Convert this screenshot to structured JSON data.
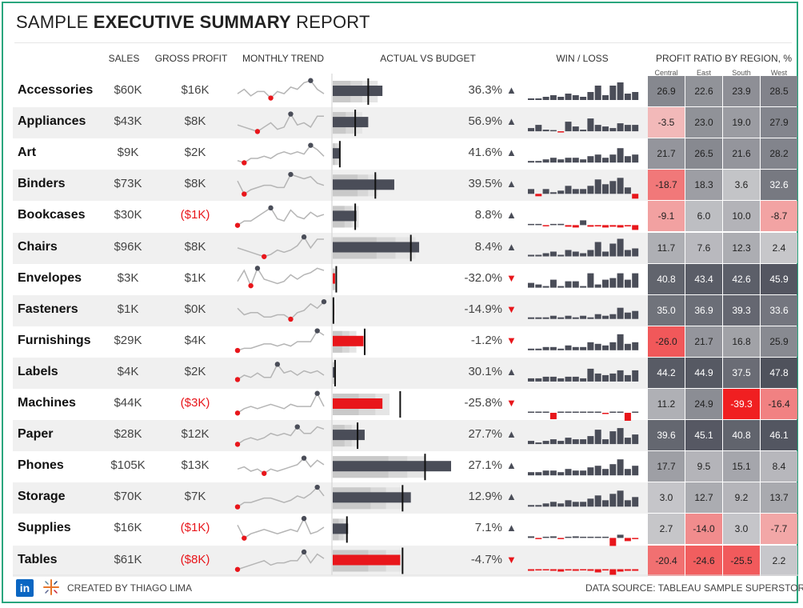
{
  "title": {
    "prefix": "SAMPLE ",
    "bold": "EXECUTIVE SUMMARY",
    "suffix": " REPORT"
  },
  "headers": {
    "sales": "SALES",
    "gross_profit": "GROSS PROFIT",
    "monthly_trend": "MONTHLY TREND",
    "actual_vs_budget": "ACTUAL VS BUDGET",
    "win_loss": "WIN / LOSS",
    "profit_ratio": "PROFIT RATIO BY REGION, %"
  },
  "regions": [
    "Central",
    "East",
    "South",
    "West"
  ],
  "footer": {
    "created_by": "CREATED BY THIAGO LIMA",
    "source": "DATA SOURCE: TABLEAU SAMPLE SUPERSTORE",
    "linkedin": "in"
  },
  "colors": {
    "accent_border": "#2aa67e",
    "dark_bar": "#4a4d58",
    "negative": "#e8161b",
    "line": "#b5b5b5"
  },
  "chart_data": {
    "type": "table",
    "title": "Sample Executive Summary Report",
    "rows": [
      {
        "category": "Accessories",
        "sales": "$60K",
        "gross_profit": "$16K",
        "gp_negative": false,
        "trend": [
          4,
          6,
          3,
          5,
          5,
          2,
          5,
          4,
          7,
          6,
          9,
          10,
          6,
          4
        ],
        "trend_min": 0,
        "trend_max": 11,
        "avb": {
          "actual": 0.42,
          "budget": 0.3,
          "ranges": [
            0.15,
            0.25,
            0.38
          ]
        },
        "pct": "36.3%",
        "pct_dir": "up",
        "winloss": [
          1,
          1,
          2,
          3,
          2,
          4,
          3,
          2,
          5,
          9,
          3,
          9,
          11,
          4,
          5
        ],
        "region": [
          26.9,
          22.6,
          23.9,
          28.5
        ]
      },
      {
        "category": "Appliances",
        "sales": "$43K",
        "gross_profit": "$8K",
        "gp_negative": false,
        "trend": [
          4,
          3,
          2,
          1,
          3,
          5,
          2,
          3,
          9,
          4,
          5,
          3,
          8,
          8
        ],
        "trend_min": 0,
        "trend_max": 11,
        "avb": {
          "actual": 0.3,
          "budget": 0.19,
          "ranges": [
            0.11,
            0.18,
            0.25
          ]
        },
        "pct": "56.9%",
        "pct_dir": "up",
        "winloss": [
          2,
          4,
          1,
          0.5,
          -0.3,
          6,
          3,
          1,
          8,
          4,
          3,
          2,
          5,
          4,
          4
        ],
        "region": [
          -3.5,
          23.0,
          19.0,
          27.9
        ]
      },
      {
        "category": "Art",
        "sales": "$9K",
        "gross_profit": "$2K",
        "gp_negative": false,
        "trend": [
          2,
          1,
          3,
          3,
          4,
          3,
          5,
          6,
          5,
          6,
          5,
          9,
          7,
          4
        ],
        "trend_min": 0,
        "trend_max": 11,
        "avb": {
          "actual": 0.06,
          "budget": 0.06,
          "ranges": [
            0.02,
            0.04,
            0.06
          ]
        },
        "pct": "41.6%",
        "pct_dir": "up",
        "winloss": [
          1,
          1,
          2,
          3,
          2,
          3,
          3,
          2,
          4,
          5,
          3,
          5,
          9,
          4,
          5
        ],
        "region": [
          21.7,
          26.5,
          21.6,
          28.2
        ]
      },
      {
        "category": "Binders",
        "sales": "$73K",
        "gross_profit": "$8K",
        "gp_negative": false,
        "trend": [
          7,
          1,
          3,
          4,
          5,
          5,
          4,
          4,
          10,
          9,
          8,
          9,
          6,
          5
        ],
        "trend_min": 0,
        "trend_max": 11,
        "avb": {
          "actual": 0.52,
          "budget": 0.36,
          "ranges": [
            0.21,
            0.3,
            0.38
          ]
        },
        "pct": "39.5%",
        "pct_dir": "up",
        "winloss": [
          3,
          -1.5,
          3,
          1,
          2,
          5,
          3,
          3,
          5,
          9,
          6,
          8,
          10,
          4,
          -3
        ],
        "region": [
          -18.7,
          18.3,
          3.6,
          32.6
        ]
      },
      {
        "category": "Bookcases",
        "sales": "$30K",
        "gross_profit": "($1K)",
        "gp_negative": true,
        "trend": [
          1,
          3,
          3,
          5,
          7,
          9,
          4,
          3,
          8,
          5,
          4,
          7,
          5,
          6
        ],
        "trend_min": 0,
        "trend_max": 11,
        "avb": {
          "actual": 0.2,
          "budget": 0.19,
          "ranges": [
            0.1,
            0.16,
            0.22
          ]
        },
        "pct": "8.8%",
        "pct_dir": "up",
        "winloss": [
          0.5,
          0.5,
          -0.3,
          0.5,
          0.8,
          -1,
          -1.5,
          3,
          -1,
          -0.8,
          -1.5,
          -1,
          -1.5,
          -0.8,
          -3
        ],
        "region": [
          -9.1,
          6.0,
          10.0,
          -8.7
        ]
      },
      {
        "category": "Chairs",
        "sales": "$96K",
        "gross_profit": "$8K",
        "gp_negative": false,
        "trend": [
          5,
          4,
          3,
          2,
          1,
          2,
          4,
          3,
          4,
          6,
          10,
          5,
          9,
          9
        ],
        "trend_min": 0,
        "trend_max": 11,
        "avb": {
          "actual": 0.73,
          "budget": 0.66,
          "ranges": [
            0.37,
            0.53,
            0.7
          ]
        },
        "pct": "8.4%",
        "pct_dir": "up",
        "winloss": [
          1,
          1,
          2,
          3,
          1,
          4,
          3,
          2,
          4,
          9,
          3,
          8,
          11,
          4,
          5
        ],
        "region": [
          11.7,
          7.6,
          12.3,
          2.4
        ]
      },
      {
        "category": "Envelopes",
        "sales": "$3K",
        "gross_profit": "$1K",
        "gp_negative": false,
        "trend": [
          4,
          9,
          2,
          10,
          5,
          4,
          3,
          4,
          7,
          5,
          7,
          8,
          10,
          9
        ],
        "trend_min": 0,
        "trend_max": 11,
        "avb": {
          "actual": 0.02,
          "budget": 0.03,
          "ranges": [
            0.01,
            0.02,
            0.03
          ]
        },
        "pct": "-32.0%",
        "pct_dir": "down",
        "winloss": [
          3,
          2,
          1,
          5,
          1,
          4,
          4,
          1,
          9,
          2,
          5,
          6,
          9,
          5,
          9
        ],
        "region": [
          40.8,
          43.4,
          42.6,
          45.9
        ]
      },
      {
        "category": "Fasteners",
        "sales": "$1K",
        "gross_profit": "$0K",
        "gp_negative": false,
        "trend": [
          6,
          3,
          4,
          4,
          2,
          2,
          3,
          3,
          1,
          4,
          5,
          8,
          6,
          9
        ],
        "trend_min": 0,
        "trend_max": 11,
        "avb": {
          "actual": 0.005,
          "budget": 0.006,
          "ranges": [
            0.002,
            0.004,
            0.006
          ]
        },
        "pct": "-14.9%",
        "pct_dir": "down",
        "winloss": [
          1,
          1,
          1,
          2,
          1,
          2,
          1,
          2,
          1,
          3,
          2,
          3,
          7,
          4,
          5
        ],
        "region": [
          35.0,
          36.9,
          39.3,
          33.6
        ]
      },
      {
        "category": "Furnishings",
        "sales": "$29K",
        "gross_profit": "$4K",
        "gp_negative": false,
        "trend": [
          1,
          2,
          2,
          3,
          4,
          4,
          3,
          4,
          3,
          5,
          5,
          5,
          10,
          8
        ],
        "trend_min": 0,
        "trend_max": 11,
        "avb": {
          "actual": 0.26,
          "budget": 0.27,
          "ranges": [
            0.08,
            0.14,
            0.2
          ]
        },
        "pct": "-1.2%",
        "pct_dir": "down",
        "winloss": [
          1,
          1,
          2,
          2,
          1,
          3,
          2,
          2,
          5,
          4,
          3,
          5,
          10,
          4,
          5
        ],
        "region": [
          -26.0,
          21.7,
          16.8,
          25.9
        ]
      },
      {
        "category": "Labels",
        "sales": "$4K",
        "gross_profit": "$2K",
        "gp_negative": false,
        "trend": [
          2,
          4,
          3,
          5,
          3,
          3,
          9,
          5,
          6,
          4,
          6,
          5,
          6,
          4
        ],
        "trend_min": 0,
        "trend_max": 11,
        "avb": {
          "actual": 0.02,
          "budget": 0.02,
          "ranges": [
            0.01,
            0.02,
            0.03
          ]
        },
        "pct": "30.1%",
        "pct_dir": "up",
        "winloss": [
          2,
          2,
          3,
          3,
          2,
          3,
          3,
          2,
          8,
          5,
          4,
          5,
          7,
          4,
          7
        ],
        "region": [
          44.2,
          44.9,
          37.5,
          47.8
        ]
      },
      {
        "category": "Machines",
        "sales": "$44K",
        "gross_profit": "($3K)",
        "gp_negative": true,
        "trend": [
          1,
          3,
          4,
          3,
          4,
          5,
          4,
          3,
          5,
          4,
          4,
          4,
          10,
          4
        ],
        "trend_min": 0,
        "trend_max": 11,
        "avb": {
          "actual": 0.42,
          "budget": 0.57,
          "ranges": [
            0.22,
            0.36,
            0.48
          ]
        },
        "pct": "-25.8%",
        "pct_dir": "down",
        "winloss": [
          0.3,
          0.3,
          0.3,
          -4,
          0.3,
          0.3,
          0.3,
          0.3,
          0.3,
          0.3,
          -0.3,
          0.3,
          0.3,
          -5,
          0.3
        ],
        "region": [
          11.2,
          24.9,
          -39.3,
          -16.4
        ]
      },
      {
        "category": "Paper",
        "sales": "$28K",
        "gross_profit": "$12K",
        "gp_negative": false,
        "trend": [
          1,
          3,
          4,
          3,
          4,
          6,
          5,
          6,
          5,
          9,
          6,
          6,
          9,
          8
        ],
        "trend_min": 0,
        "trend_max": 11,
        "avb": {
          "actual": 0.27,
          "budget": 0.21,
          "ranges": [
            0.1,
            0.16,
            0.22
          ]
        },
        "pct": "27.7%",
        "pct_dir": "up",
        "winloss": [
          2,
          1,
          2,
          3,
          2,
          4,
          3,
          3,
          5,
          9,
          3,
          8,
          10,
          4,
          6
        ],
        "region": [
          39.6,
          45.1,
          40.8,
          46.1
        ]
      },
      {
        "category": "Phones",
        "sales": "$105K",
        "gross_profit": "$13K",
        "gp_negative": false,
        "trend": [
          4,
          5,
          3,
          4,
          2,
          4,
          3,
          4,
          5,
          6,
          9,
          5,
          8,
          6
        ],
        "trend_min": 0,
        "trend_max": 11,
        "avb": {
          "actual": 1.0,
          "budget": 0.78,
          "ranges": [
            0.47,
            0.63,
            0.78
          ]
        },
        "pct": "27.1%",
        "pct_dir": "up",
        "winloss": [
          2,
          2,
          3,
          3,
          2,
          4,
          3,
          3,
          5,
          6,
          4,
          7,
          10,
          4,
          6
        ],
        "region": [
          17.7,
          9.5,
          15.1,
          8.4
        ]
      },
      {
        "category": "Storage",
        "sales": "$70K",
        "gross_profit": "$7K",
        "gp_negative": false,
        "trend": [
          1,
          3,
          3,
          4,
          5,
          5,
          4,
          3,
          4,
          6,
          5,
          7,
          10,
          6
        ],
        "trend_min": 0,
        "trend_max": 11,
        "avb": {
          "actual": 0.66,
          "budget": 0.59,
          "ranges": [
            0.32,
            0.45,
            0.58
          ]
        },
        "pct": "12.9%",
        "pct_dir": "up",
        "winloss": [
          1,
          1,
          2,
          3,
          2,
          4,
          3,
          3,
          5,
          7,
          4,
          8,
          10,
          4,
          6
        ],
        "region": [
          3.0,
          12.7,
          9.2,
          13.7
        ]
      },
      {
        "category": "Supplies",
        "sales": "$16K",
        "gross_profit": "($1K)",
        "gp_negative": true,
        "trend": [
          7,
          1,
          3,
          4,
          5,
          4,
          3,
          4,
          5,
          4,
          10,
          3,
          4,
          6
        ],
        "trend_min": 0,
        "trend_max": 11,
        "avb": {
          "actual": 0.13,
          "budget": 0.12,
          "ranges": [
            0.05,
            0.09,
            0.13
          ]
        },
        "pct": "7.1%",
        "pct_dir": "up",
        "winloss": [
          1,
          -0.5,
          0.3,
          1,
          -0.3,
          0.3,
          1,
          0.5,
          0.3,
          0.5,
          0.3,
          -5,
          2,
          -2,
          -0.3
        ],
        "region": [
          2.7,
          -14.0,
          3.0,
          -7.7
        ]
      },
      {
        "category": "Tables",
        "sales": "$61K",
        "gross_profit": "($8K)",
        "gp_negative": true,
        "trend": [
          1,
          2,
          3,
          4,
          5,
          3,
          4,
          4,
          5,
          5,
          9,
          4,
          8,
          6
        ],
        "trend_min": 0,
        "trend_max": 11,
        "avb": {
          "actual": 0.57,
          "budget": 0.59,
          "ranges": [
            0.3,
            0.45,
            0.58
          ]
        },
        "pct": "-4.7%",
        "pct_dir": "down",
        "winloss": [
          -1,
          -0.8,
          -0.5,
          -1,
          -1.5,
          -0.8,
          -1,
          -0.5,
          -1,
          -2,
          -0.8,
          -4,
          -1.5,
          -1,
          -1
        ],
        "region": [
          -20.4,
          -24.6,
          -25.5,
          2.2
        ]
      }
    ]
  }
}
